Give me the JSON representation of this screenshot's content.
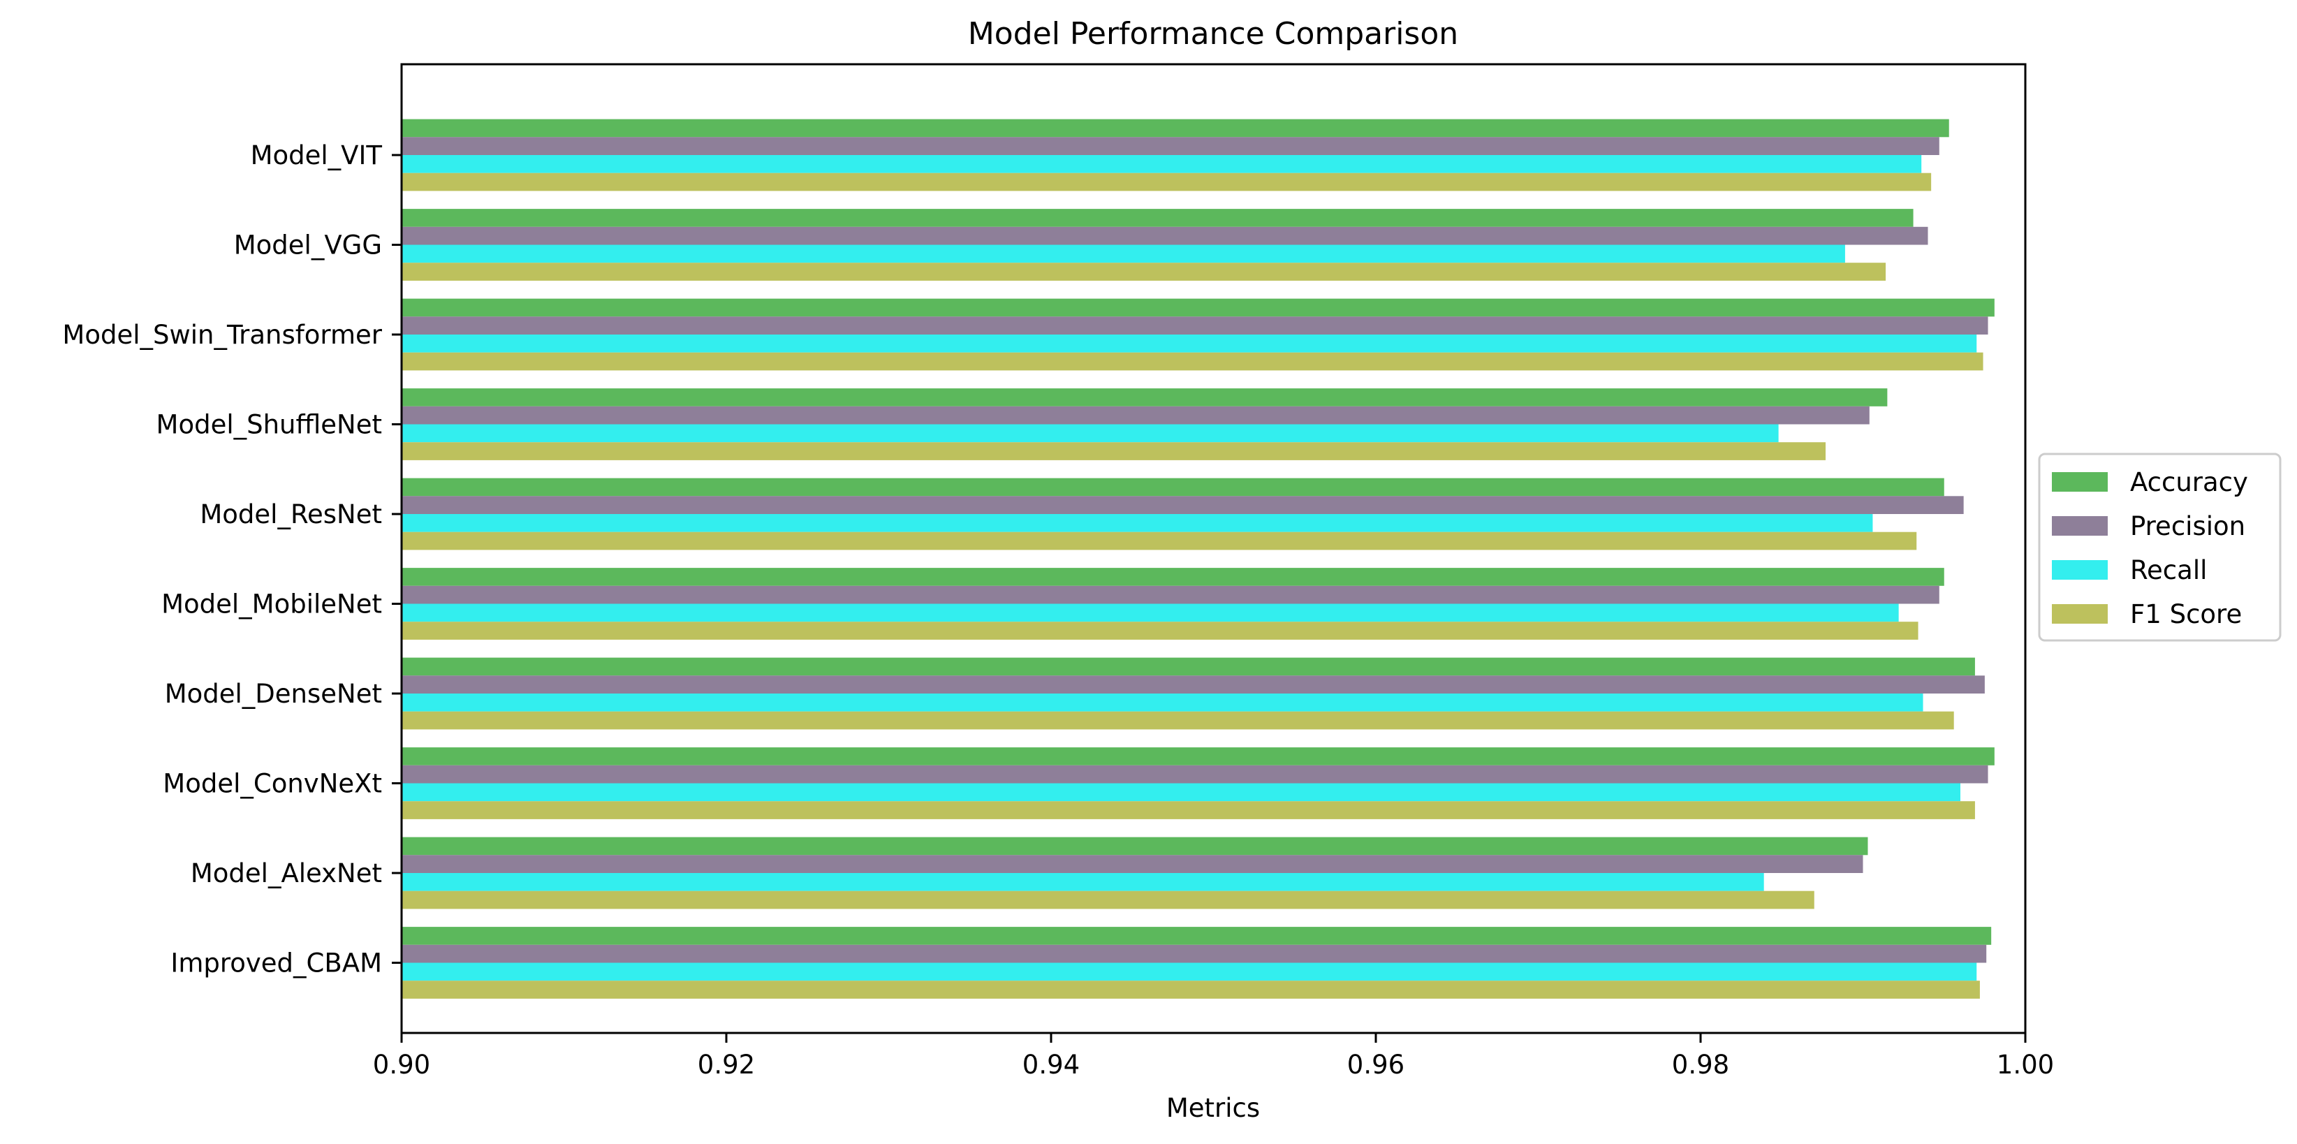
{
  "chart_data": {
    "type": "bar",
    "orientation": "horizontal",
    "title": "Model Performance Comparison",
    "xlabel": "Metrics",
    "ylabel": "",
    "xlim": [
      0.9,
      1.0
    ],
    "xticks": [
      "0.90",
      "0.92",
      "0.94",
      "0.96",
      "0.98",
      "1.00"
    ],
    "grid": false,
    "legend_position": "center-right-outside",
    "categories": [
      "Model_VIT",
      "Model_VGG",
      "Model_Swin_Transformer",
      "Model_ShuffleNet",
      "Model_ResNet",
      "Model_MobileNet",
      "Model_DenseNet",
      "Model_ConvNeXt",
      "Model_AlexNet",
      "Improved_CBAM"
    ],
    "series": [
      {
        "name": "Accuracy",
        "color": "#5cb85c",
        "values": [
          0.9953,
          0.9931,
          0.9981,
          0.9915,
          0.995,
          0.995,
          0.9969,
          0.9981,
          0.9903,
          0.9979
        ]
      },
      {
        "name": "Precision",
        "color": "#8e7f99",
        "values": [
          0.9947,
          0.994,
          0.9977,
          0.9904,
          0.9962,
          0.9947,
          0.9975,
          0.9977,
          0.99,
          0.9976
        ]
      },
      {
        "name": "Recall",
        "color": "#33eeee",
        "values": [
          0.9936,
          0.9889,
          0.997,
          0.9848,
          0.9906,
          0.9922,
          0.9937,
          0.996,
          0.9839,
          0.997
        ]
      },
      {
        "name": "F1 Score",
        "color": "#bdc15d",
        "values": [
          0.9942,
          0.9914,
          0.9974,
          0.9877,
          0.9933,
          0.9934,
          0.9956,
          0.9969,
          0.987,
          0.9972
        ]
      }
    ]
  }
}
